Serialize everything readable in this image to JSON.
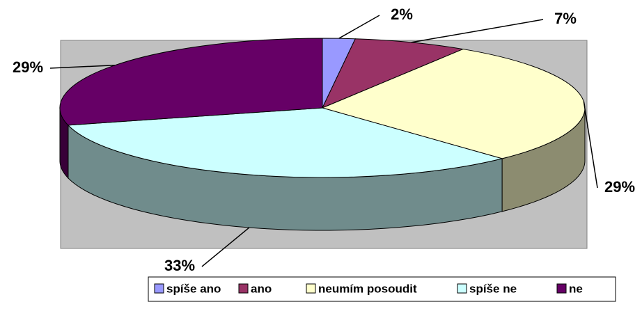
{
  "chart_data": {
    "type": "pie3d",
    "categories": [
      "spíše ano",
      "ano",
      "neumím posoudit",
      "spíše ne",
      "ne"
    ],
    "values": [
      2,
      7,
      29,
      33,
      29
    ],
    "value_labels": [
      "2%",
      "7%",
      "29%",
      "33%",
      "29%"
    ],
    "colors": [
      "#9999ff",
      "#993366",
      "#ffffcc",
      "#ccffff",
      "#660066"
    ],
    "legend": "bottom"
  }
}
